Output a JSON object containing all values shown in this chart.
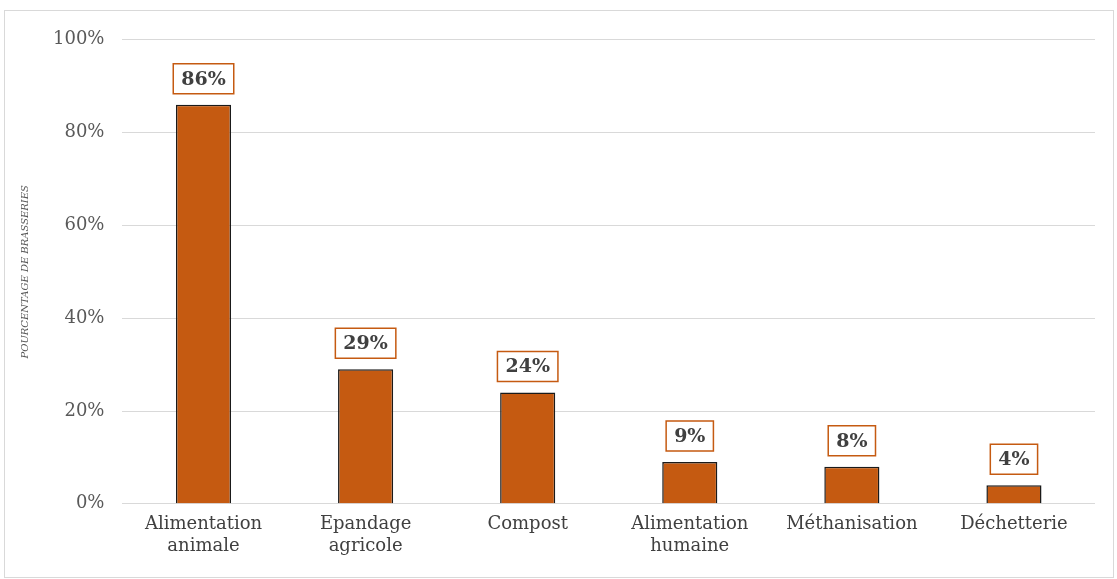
{
  "chart_data": {
    "type": "bar",
    "ylabel": "POURCENTAGE DE BRASSERIES",
    "categories": [
      "Alimentation animale",
      "Epandage agricole",
      "Compost",
      "Alimentation humaine",
      "Méthanisation",
      "Déchetterie"
    ],
    "values": [
      86,
      29,
      24,
      9,
      8,
      4
    ],
    "value_labels": [
      "86%",
      "29%",
      "24%",
      "9%",
      "8%",
      "4%"
    ],
    "color": "#c55a11",
    "ylim": [
      0,
      100
    ],
    "yticks": [
      {
        "value": 0,
        "label": "0%"
      },
      {
        "value": 20,
        "label": "20%"
      },
      {
        "value": 40,
        "label": "40%"
      },
      {
        "value": 60,
        "label": "60%"
      },
      {
        "value": 80,
        "label": "80%"
      },
      {
        "value": 100,
        "label": "100%"
      }
    ],
    "grid": "y",
    "legend": false
  }
}
